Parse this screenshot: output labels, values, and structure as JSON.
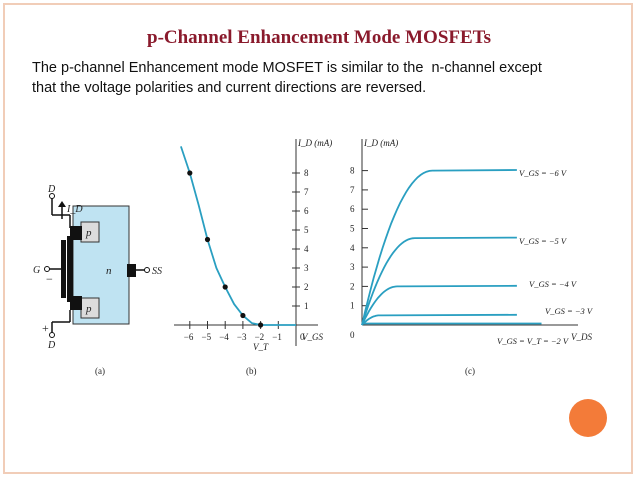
{
  "title": "p-Channel Enhancement Mode MOSFETs",
  "description": [
    "The p-channel Enhancement mode MOSFET is similar to the  n-channel except",
    "that the voltage polarities and current directions are reversed."
  ],
  "colors": {
    "title": "#8a1a2c",
    "border": "#f1cdb8",
    "curve": "#2a9fc1",
    "substrate": "#bfe3f2",
    "accent_circle": "#f37b39"
  },
  "panel_a": {
    "caption": "(a)",
    "terminals": {
      "drain": "D",
      "gate": "G",
      "source": "D",
      "substrate": "SS"
    },
    "current_label": "I_D",
    "regions": {
      "p_top": "p",
      "p_bottom": "p",
      "n": "n"
    },
    "signs": {
      "minus": "−",
      "plus": "+"
    }
  },
  "chart_data": [
    {
      "type": "line",
      "panel": "(b)",
      "title": "",
      "xlabel": "V_GS",
      "ylabel": "I_D (mA)",
      "x_ticks": [
        "−6",
        "−5",
        "−4",
        "−3",
        "−2",
        "−1",
        "0"
      ],
      "y_ticks": [
        "1",
        "2",
        "3",
        "4",
        "5",
        "6",
        "7",
        "8"
      ],
      "annotation": "V_T",
      "xlim": [
        -6.5,
        0.6
      ],
      "ylim": [
        0,
        9.5
      ],
      "series": [
        {
          "x": [
            -6.5,
            -6,
            -5.5,
            -5,
            -4.5,
            -4,
            -3.5,
            -3,
            -2.5,
            -2,
            -1.5,
            0
          ],
          "y": [
            9.4,
            8.0,
            6.3,
            4.5,
            3.0,
            2.0,
            1.1,
            0.5,
            0.1,
            0,
            0,
            0
          ]
        }
      ],
      "points": [
        {
          "x": -6,
          "y": 8
        },
        {
          "x": -5,
          "y": 4.5
        },
        {
          "x": -4,
          "y": 2
        },
        {
          "x": -3,
          "y": 0.5
        },
        {
          "x": -2,
          "y": 0
        }
      ]
    },
    {
      "type": "line",
      "panel": "(c)",
      "title": "",
      "xlabel": "V_DS",
      "ylabel": "I_D (mA)",
      "y_ticks": [
        "0",
        "1",
        "2",
        "3",
        "4",
        "5",
        "6",
        "7",
        "8"
      ],
      "xlim": [
        0,
        10
      ],
      "ylim": [
        0,
        9
      ],
      "series": [
        {
          "name": "V_GS = −6 V",
          "saturation": 8
        },
        {
          "name": "V_GS = −5 V",
          "saturation": 4.5
        },
        {
          "name": "V_GS = −4 V",
          "saturation": 2
        },
        {
          "name": "V_GS = −3 V",
          "saturation": 0.5
        },
        {
          "name": "V_GS = V_T = −2 V",
          "saturation": 0
        }
      ]
    }
  ]
}
